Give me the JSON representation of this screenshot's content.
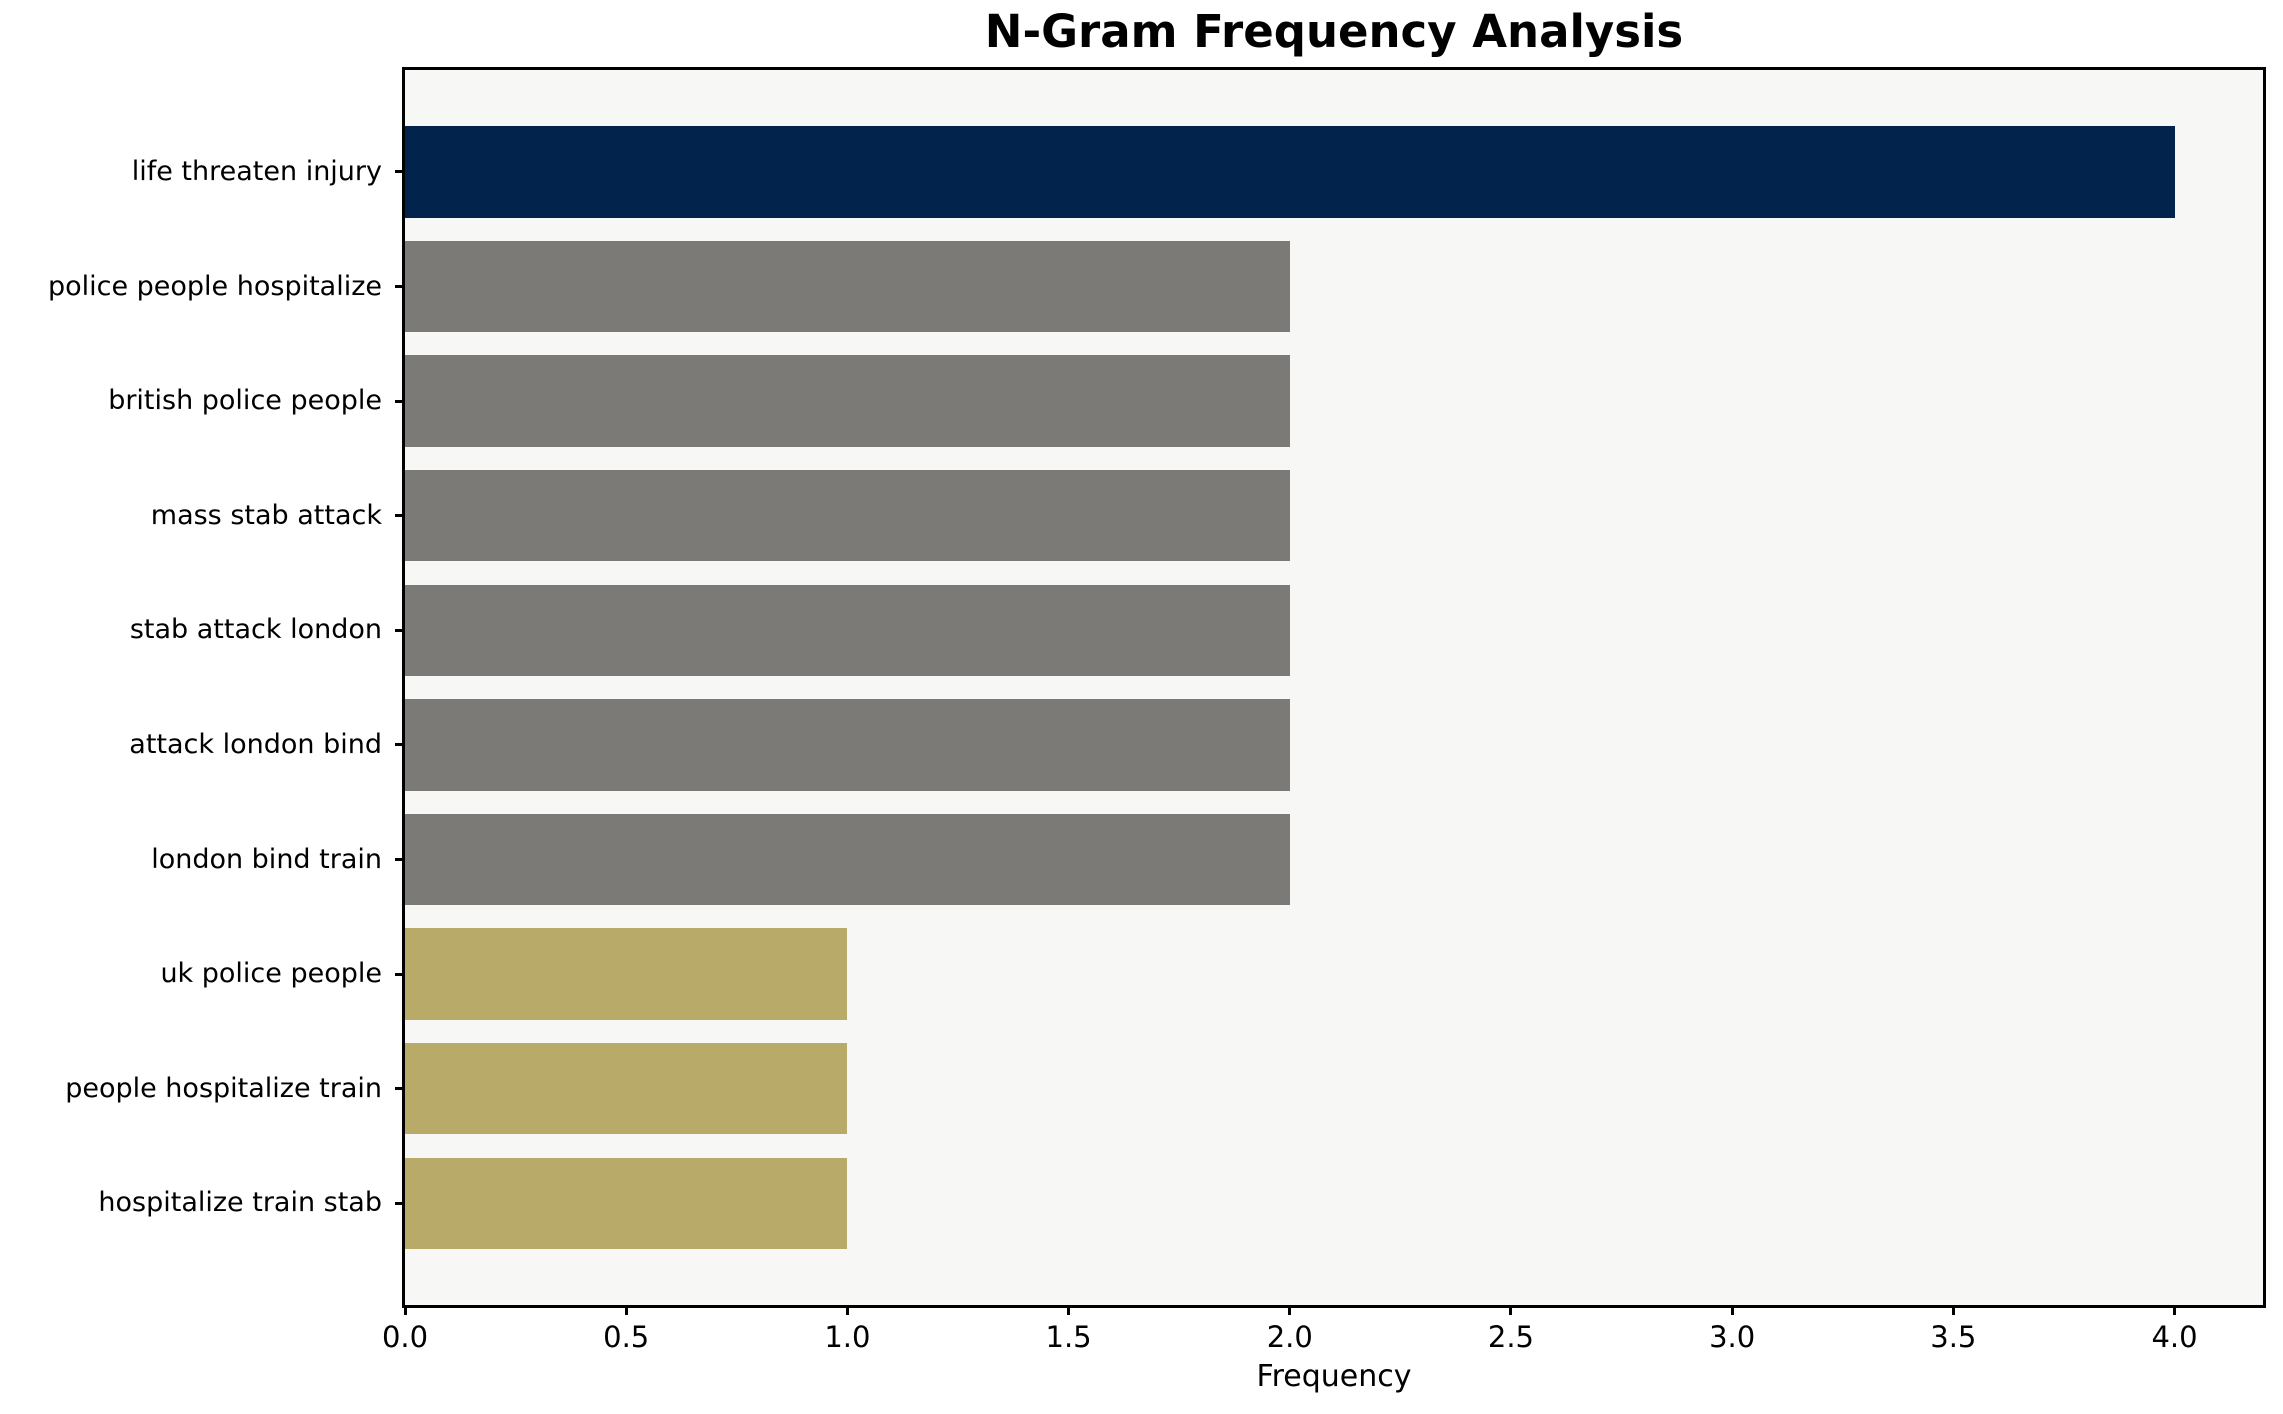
{
  "chart_data": {
    "type": "bar",
    "orientation": "horizontal",
    "title": "N-Gram Frequency Analysis",
    "xlabel": "Frequency",
    "ylabel": "",
    "categories": [
      "life threaten injury",
      "police people hospitalize",
      "british police people",
      "mass stab attack",
      "stab attack london",
      "attack london bind",
      "london bind train",
      "uk police people",
      "people hospitalize train",
      "hospitalize train stab"
    ],
    "values": [
      4,
      2,
      2,
      2,
      2,
      2,
      2,
      1,
      1,
      1
    ],
    "bar_colors": [
      "#02234C",
      "#7B7A76",
      "#7B7A76",
      "#7B7A76",
      "#7B7A76",
      "#7B7A76",
      "#7B7A76",
      "#B8AB69",
      "#B8AB69",
      "#B8AB69"
    ],
    "xlim": [
      0,
      4.2
    ],
    "xticks": [
      0.0,
      0.5,
      1.0,
      1.5,
      2.0,
      2.5,
      3.0,
      3.5,
      4.0
    ],
    "xtick_labels": [
      "0.0",
      "0.5",
      "1.0",
      "1.5",
      "2.0",
      "2.5",
      "3.0",
      "3.5",
      "4.0"
    ],
    "grid": false,
    "legend": "none",
    "colors": {
      "figure_background": "#FFFFFF",
      "plot_background": "#F7F7F6",
      "axis": "#000000",
      "text": "#000000"
    }
  }
}
